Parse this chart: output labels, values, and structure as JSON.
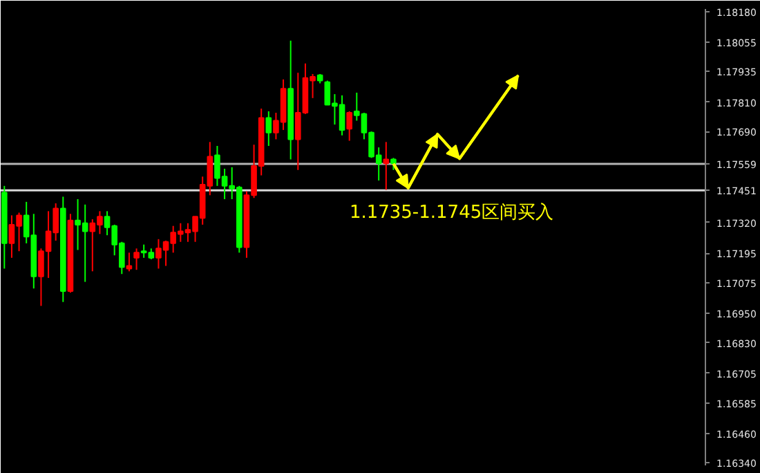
{
  "chart_data": {
    "type": "candlestick",
    "categories": [
      null,
      null,
      null,
      null,
      null,
      null,
      null,
      null,
      null,
      null,
      null,
      null,
      null,
      null,
      null,
      null,
      null,
      null,
      null,
      null,
      null,
      null,
      null,
      null,
      null,
      null,
      null,
      null,
      null,
      null,
      null,
      null,
      null,
      null,
      null,
      null,
      null,
      null,
      null,
      null,
      null,
      null,
      null,
      null,
      null,
      null,
      null,
      null,
      null,
      null,
      null,
      null,
      null,
      null,
      null,
      null,
      null,
      null,
      null,
      null,
      null,
      null,
      null,
      null,
      null,
      null,
      null,
      null,
      null,
      null,
      null,
      null,
      null,
      null,
      null,
      null,
      null,
      null,
      null,
      null,
      null,
      null,
      null,
      null,
      null,
      null,
      null,
      null,
      null,
      null,
      null,
      null,
      null,
      null,
      null,
      null
    ],
    "ohlc": [
      [
        1.17442,
        1.17469,
        1.17132,
        1.17235
      ],
      [
        1.17235,
        1.17349,
        1.17176,
        1.17311
      ],
      [
        1.17306,
        1.1736,
        1.17203,
        1.17349
      ],
      [
        1.17349,
        1.17404,
        1.17235,
        1.17262
      ],
      [
        1.17268,
        1.17355,
        1.17051,
        1.171
      ],
      [
        1.171,
        1.17214,
        1.1698,
        1.17203
      ],
      [
        1.17203,
        1.17366,
        1.17094,
        1.17284
      ],
      [
        1.17279,
        1.17398,
        1.17246,
        1.17377
      ],
      [
        1.17377,
        1.17425,
        1.16996,
        1.1704
      ],
      [
        1.1704,
        1.17355,
        1.17034,
        1.17328
      ],
      [
        1.17328,
        1.17415,
        1.17208,
        1.17311
      ],
      [
        1.17317,
        1.17393,
        1.17078,
        1.17284
      ],
      [
        1.17284,
        1.17333,
        1.17121,
        1.17317
      ],
      [
        1.17311,
        1.17366,
        1.17273,
        1.17344
      ],
      [
        1.17344,
        1.17366,
        1.17268,
        1.173
      ],
      [
        1.17306,
        1.17311,
        1.17186,
        1.1723
      ],
      [
        1.17235,
        1.17241,
        1.1711,
        1.17138
      ],
      [
        1.17132,
        1.17197,
        1.17121,
        1.17143
      ],
      [
        1.17176,
        1.17214,
        1.17127,
        1.17197
      ],
      [
        1.17203,
        1.1723,
        1.17176,
        1.17197
      ],
      [
        1.17197,
        1.17214,
        1.1717,
        1.17176
      ],
      [
        1.17176,
        1.17252,
        1.17132,
        1.17214
      ],
      [
        1.17208,
        1.17246,
        1.17143,
        1.17241
      ],
      [
        1.17235,
        1.17306,
        1.17197,
        1.17279
      ],
      [
        1.17273,
        1.17317,
        1.17241,
        1.17284
      ],
      [
        1.17279,
        1.17317,
        1.17241,
        1.1729
      ],
      [
        1.17284,
        1.17344,
        1.17241,
        1.17344
      ],
      [
        1.17338,
        1.17507,
        1.17311,
        1.17474
      ],
      [
        1.17469,
        1.17648,
        1.17431,
        1.17588
      ],
      [
        1.17594,
        1.17632,
        1.17469,
        1.17501
      ],
      [
        1.17507,
        1.17539,
        1.17415,
        1.17469
      ],
      [
        1.17469,
        1.17545,
        1.17415,
        1.17458
      ],
      [
        1.17463,
        1.17469,
        1.17197,
        1.17219
      ],
      [
        1.17219,
        1.17447,
        1.17176,
        1.17431
      ],
      [
        1.17431,
        1.17637,
        1.1742,
        1.1755
      ],
      [
        1.1755,
        1.17784,
        1.17512,
        1.17746
      ],
      [
        1.17746,
        1.17773,
        1.17632,
        1.17686
      ],
      [
        1.17686,
        1.17767,
        1.17659,
        1.17735
      ],
      [
        1.17729,
        1.17903,
        1.17697,
        1.17865
      ],
      [
        1.17865,
        1.18061,
        1.17577,
        1.17659
      ],
      [
        1.17659,
        1.1793,
        1.17534,
        1.17767
      ],
      [
        1.17767,
        1.17968,
        1.17762,
        1.17909
      ],
      [
        1.17898,
        1.17925,
        1.17827,
        1.17914
      ],
      [
        1.1792,
        1.17925,
        1.17887,
        1.17898
      ],
      [
        1.17892,
        1.17898,
        1.178,
        1.178
      ],
      [
        1.17805,
        1.17843,
        1.17719,
        1.17795
      ],
      [
        1.178,
        1.17838,
        1.17675,
        1.17697
      ],
      [
        1.17702,
        1.17773,
        1.17653,
        1.17767
      ],
      [
        1.17773,
        1.17849,
        1.17735,
        1.17757
      ],
      [
        1.17762,
        1.17767,
        1.17659,
        1.17686
      ],
      [
        1.17686,
        1.17691,
        1.17583,
        1.17588
      ],
      [
        1.17594,
        1.17626,
        1.17491,
        1.17561
      ],
      [
        1.17561,
        1.17648,
        1.17453,
        1.17577
      ],
      [
        1.17577,
        1.17583,
        1.17534,
        1.17561
      ],
      null,
      null,
      null,
      null,
      null,
      null,
      null,
      null,
      null,
      null,
      null,
      null,
      null,
      null,
      null,
      null,
      null,
      null,
      null,
      null,
      null,
      null,
      null,
      null,
      null,
      null,
      null,
      null,
      null,
      null,
      null,
      null,
      null,
      null,
      null,
      null,
      null,
      null,
      null,
      null,
      null,
      null
    ],
    "colors": [
      "#00ff00",
      "#ff0000",
      "#ff0000",
      "#00ff00",
      "#00ff00",
      "#ff0000",
      "#ff0000",
      "#ff0000",
      "#00ff00",
      "#ff0000",
      "#00ff00",
      "#00ff00",
      "#ff0000",
      "#ff0000",
      "#00ff00",
      "#00ff00",
      "#00ff00",
      "#ff0000",
      "#ff0000",
      "#00ff00",
      "#00ff00",
      "#ff0000",
      "#ff0000",
      "#ff0000",
      "#ff0000",
      "#ff0000",
      "#ff0000",
      "#ff0000",
      "#ff0000",
      "#00ff00",
      "#00ff00",
      "#00ff00",
      "#00ff00",
      "#ff0000",
      "#ff0000",
      "#ff0000",
      "#00ff00",
      "#ff0000",
      "#ff0000",
      "#00ff00",
      "#ff0000",
      "#ff0000",
      "#ff0000",
      "#00ff00",
      "#00ff00",
      "#00ff00",
      "#00ff00",
      "#ff0000",
      "#00ff00",
      "#00ff00",
      "#00ff00",
      "#00ff00",
      "#ff0000",
      "#00ff00",
      null,
      null,
      null,
      null,
      null,
      null,
      null,
      null,
      null,
      null,
      null,
      null,
      null,
      null,
      null,
      null,
      null,
      null,
      null,
      null,
      null,
      null,
      null,
      null,
      null,
      null,
      null,
      null,
      null,
      null,
      null,
      null,
      null,
      null,
      null,
      null,
      null,
      null,
      null,
      null,
      null,
      null
    ],
    "series": [
      {
        "type": "line",
        "color": "#ffff00",
        "values": [
          null,
          null,
          null,
          null,
          null,
          null,
          null,
          null,
          null,
          null,
          null,
          null,
          null,
          null,
          null,
          null,
          null,
          null,
          null,
          null,
          null,
          null,
          null,
          null,
          null,
          null,
          null,
          null,
          null,
          null,
          null,
          null,
          null,
          null,
          null,
          null,
          null,
          null,
          null,
          null,
          null,
          null,
          null,
          null,
          null,
          null,
          null,
          null,
          null,
          null,
          null,
          null,
          null,
          1.1756,
          null,
          1.1746,
          null,
          null,
          null,
          1.1768,
          null,
          null,
          1.1758,
          null,
          null,
          null,
          null,
          null,
          null,
          null,
          1.1792,
          null,
          null,
          null,
          null,
          null,
          null,
          null,
          null,
          null,
          null,
          null,
          null,
          null,
          null,
          null,
          null,
          null,
          null,
          null,
          null,
          null,
          null,
          null,
          null,
          null
        ]
      }
    ],
    "ylim": [
      1.1633,
      1.1819
    ],
    "yticks": [
      {
        "value": 1.1818,
        "label": "1.18180"
      },
      {
        "value": 1.18055,
        "label": "1.18055"
      },
      {
        "value": 1.17935,
        "label": "1.17935"
      },
      {
        "value": 1.1781,
        "label": "1.17810"
      },
      {
        "value": 1.1769,
        "label": "1.17690"
      },
      {
        "value": 1.1732,
        "label": "1.17320"
      },
      {
        "value": 1.17195,
        "label": "1.17195"
      },
      {
        "value": 1.17075,
        "label": "1.17075"
      },
      {
        "value": 1.1695,
        "label": "1.16950"
      },
      {
        "value": 1.1683,
        "label": "1.16830"
      },
      {
        "value": 1.16705,
        "label": "1.16705"
      },
      {
        "value": 1.16585,
        "label": "1.16585"
      },
      {
        "value": 1.1646,
        "label": "1.16460"
      },
      {
        "value": 1.1634,
        "label": "1.16340"
      }
    ],
    "ref_lines": [
      {
        "axis": "y",
        "value": 1.17559,
        "label": "1.17559",
        "color": "#b4b4b4"
      },
      {
        "axis": "y",
        "value": 1.17451,
        "label": "1.17451",
        "color": "#d8d8d8"
      }
    ],
    "annotations": [
      "1.1735-1.1745区间买入"
    ],
    "grid": false,
    "tick_labels": "y"
  }
}
